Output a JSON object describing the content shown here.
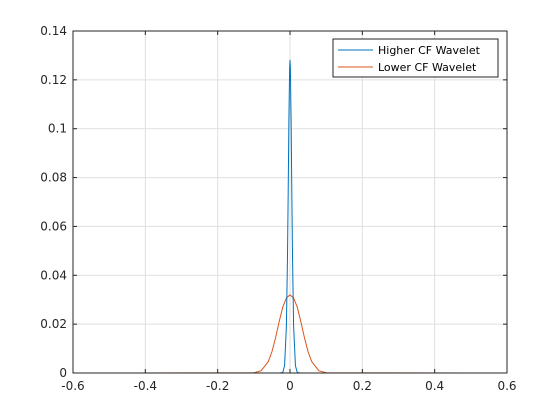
{
  "chart_data": {
    "type": "line",
    "title": "",
    "xlabel": "",
    "ylabel": "",
    "xlim": [
      -0.6,
      0.6
    ],
    "ylim": [
      0,
      0.14
    ],
    "x_ticks": [
      -0.6,
      -0.4,
      -0.2,
      0,
      0.2,
      0.4,
      0.6
    ],
    "x_tick_labels": [
      "-0.6",
      "-0.4",
      "-0.2",
      "0",
      "0.2",
      "0.4",
      "0.6"
    ],
    "y_ticks": [
      0,
      0.02,
      0.04,
      0.06,
      0.08,
      0.1,
      0.12,
      0.14
    ],
    "y_tick_labels": [
      "0",
      "0.02",
      "0.04",
      "0.06",
      "0.08",
      "0.1",
      "0.12",
      "0.14"
    ],
    "grid": true,
    "legend_position": "top-right",
    "series": [
      {
        "name": "Higher CF Wavelet",
        "color": "#0072BD",
        "x": [
          -0.512,
          -0.05,
          -0.03,
          -0.02,
          -0.015,
          -0.01,
          -0.007,
          -0.005,
          -0.003,
          -0.001,
          0,
          0.001,
          0.003,
          0.005,
          0.007,
          0.01,
          0.015,
          0.02,
          0.03,
          0.05,
          0.512
        ],
        "y": [
          0,
          0,
          0,
          0.0002,
          0.003,
          0.019,
          0.047,
          0.074,
          0.104,
          0.125,
          0.128,
          0.125,
          0.104,
          0.074,
          0.047,
          0.019,
          0.003,
          0.0002,
          0,
          0,
          0
        ]
      },
      {
        "name": "Lower CF Wavelet",
        "color": "#D95319",
        "x": [
          -0.512,
          -0.1,
          -0.08,
          -0.06,
          -0.05,
          -0.04,
          -0.03,
          -0.02,
          -0.01,
          0,
          0.01,
          0.02,
          0.03,
          0.04,
          0.05,
          0.06,
          0.08,
          0.1,
          0.512
        ],
        "y": [
          0,
          0.0001,
          0.0009,
          0.0047,
          0.0087,
          0.0144,
          0.021,
          0.027,
          0.0307,
          0.032,
          0.0307,
          0.027,
          0.021,
          0.0144,
          0.0087,
          0.0047,
          0.0009,
          0.0001,
          0
        ]
      }
    ]
  }
}
